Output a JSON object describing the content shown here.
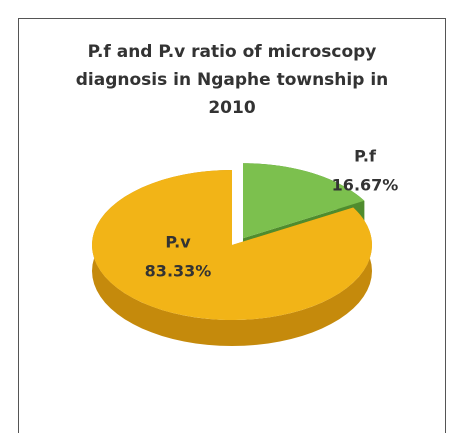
{
  "chart_data": {
    "type": "pie",
    "title": "P.f and P.v ratio of microscopy diagnosis in Ngaphe township in 2010",
    "categories": [
      "P.f",
      "P.v"
    ],
    "values": [
      16.67,
      83.33
    ],
    "value_labels": [
      "16.67%",
      "83.33%"
    ],
    "colors": [
      "#7cc04e",
      "#f2b417"
    ],
    "side_colors": [
      "#4f8c2e",
      "#c58a0c"
    ],
    "exploded": [
      true,
      false
    ]
  }
}
